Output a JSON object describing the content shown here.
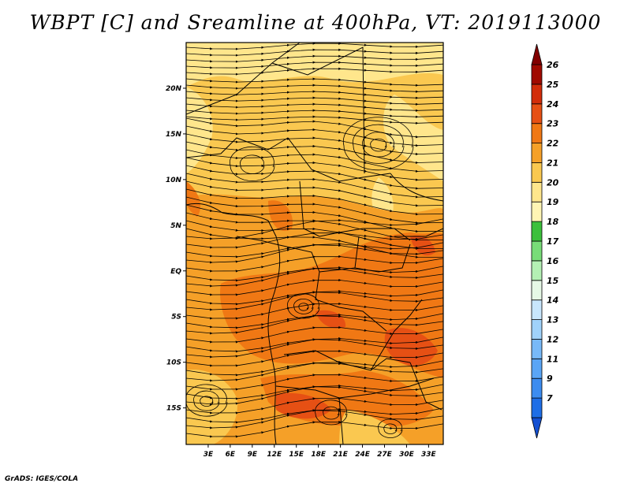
{
  "title": "WBPT [C] and Sreamline at 400hPa, VT: 2019113000",
  "footer": "GrADS: IGES/COLA",
  "map": {
    "lon_range": [
      0,
      35
    ],
    "lat_range": [
      -19,
      25
    ],
    "lon_ticks": [
      {
        "value": 3,
        "label": "3E"
      },
      {
        "value": 6,
        "label": "6E"
      },
      {
        "value": 9,
        "label": "9E"
      },
      {
        "value": 12,
        "label": "12E"
      },
      {
        "value": 15,
        "label": "15E"
      },
      {
        "value": 18,
        "label": "18E"
      },
      {
        "value": 21,
        "label": "21E"
      },
      {
        "value": 24,
        "label": "24E"
      },
      {
        "value": 27,
        "label": "27E"
      },
      {
        "value": 30,
        "label": "30E"
      },
      {
        "value": 33,
        "label": "33E"
      }
    ],
    "lat_ticks": [
      {
        "value": 20,
        "label": "20N"
      },
      {
        "value": 15,
        "label": "15N"
      },
      {
        "value": 10,
        "label": "10N"
      },
      {
        "value": 5,
        "label": "5N"
      },
      {
        "value": 0,
        "label": "EQ"
      },
      {
        "value": -5,
        "label": "5S"
      },
      {
        "value": -10,
        "label": "10S"
      },
      {
        "value": -15,
        "label": "15S"
      }
    ]
  },
  "colorbar": {
    "levels": [
      {
        "label": "7",
        "color": "#1e6ee6"
      },
      {
        "label": "9",
        "color": "#3c8cf0"
      },
      {
        "label": "11",
        "color": "#5aa5f5"
      },
      {
        "label": "12",
        "color": "#78b9f8"
      },
      {
        "label": "13",
        "color": "#a0d2fa"
      },
      {
        "label": "14",
        "color": "#c8e6fc"
      },
      {
        "label": "15",
        "color": "#e6f8e6"
      },
      {
        "label": "16",
        "color": "#b4f0b4"
      },
      {
        "label": "17",
        "color": "#78dc78"
      },
      {
        "label": "18",
        "color": "#3cc03c"
      },
      {
        "label": "19",
        "color": "#fff5b4"
      },
      {
        "label": "20",
        "color": "#ffe68c"
      },
      {
        "label": "21",
        "color": "#fac850"
      },
      {
        "label": "22",
        "color": "#f5a028"
      },
      {
        "label": "23",
        "color": "#f07814"
      },
      {
        "label": "24",
        "color": "#e65014"
      },
      {
        "label": "25",
        "color": "#d22d0a"
      },
      {
        "label": "26",
        "color": "#a00a00"
      }
    ],
    "low_color": "#1450d2",
    "high_color": "#820000"
  },
  "field_colors": {
    "pale": "#ffe68c",
    "light": "#fac850",
    "mid": "#f5a028",
    "warm": "#f07814",
    "hot": "#e65014"
  }
}
